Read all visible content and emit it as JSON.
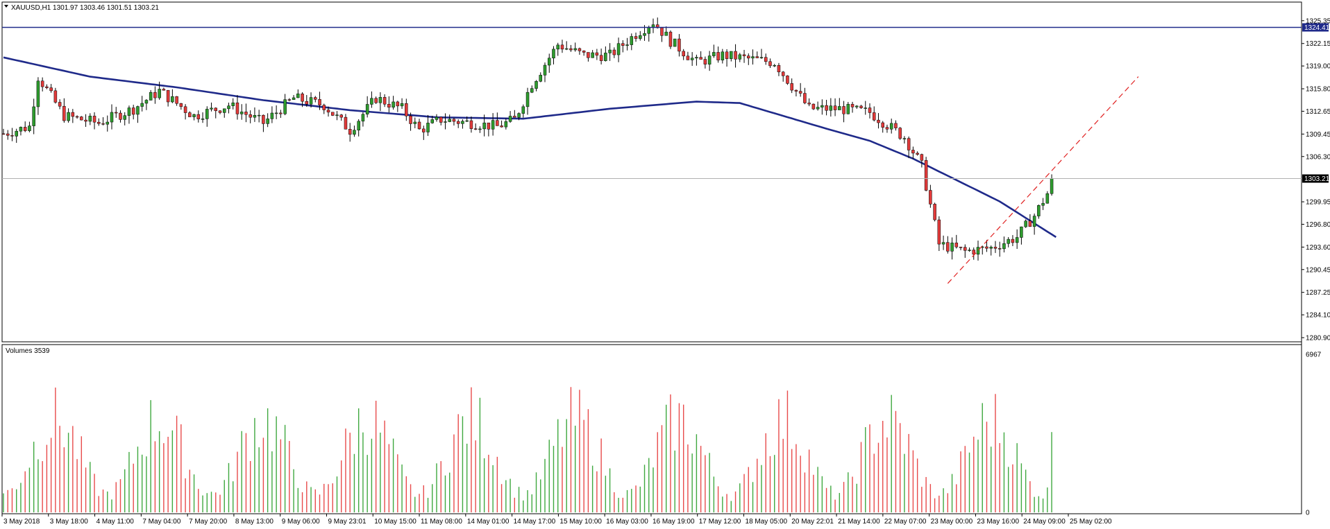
{
  "header": {
    "symbol_line": "XAUUSD,H1  1301.97 1303.46 1301.51 1303.21",
    "volume_label": "Volumes 3539"
  },
  "colors": {
    "background": "#ffffff",
    "bull": "#2e9c2e",
    "bear": "#e23a3a",
    "candle_wick": "#000000",
    "moving_average": "#1f2a8a",
    "resistance_line": "#1f2a8a",
    "current_price_line": "#b0b0b0",
    "trend_line": "#e02020",
    "volume_up": "#3fa83f",
    "volume_down": "#e84a4a"
  },
  "chart_data": [
    {
      "type": "candlestick",
      "name": "XAUUSD,H1",
      "ylim": [
        1280.9,
        1326.5
      ],
      "y_ticks": [
        1325.35,
        1322.15,
        1319.0,
        1315.8,
        1312.65,
        1309.45,
        1306.3,
        1303.21,
        1299.95,
        1296.8,
        1293.6,
        1290.45,
        1287.25,
        1284.1,
        1280.9
      ],
      "price_labels": {
        "resistance": "1324.41",
        "current": "1303.21"
      },
      "resistance_level": 1324.41,
      "current_price": 1303.21,
      "x_labels": [
        "3 May 2018",
        "3 May 18:00",
        "4 May 11:00",
        "7 May 04:00",
        "7 May 20:00",
        "8 May 13:00",
        "9 May 06:00",
        "9 May 23:01",
        "10 May 15:00",
        "11 May 08:00",
        "14 May 01:00",
        "14 May 17:00",
        "15 May 10:00",
        "16 May 03:00",
        "16 May 19:00",
        "17 May 12:00",
        "18 May 05:00",
        "20 May 22:01",
        "21 May 14:00",
        "22 May 07:00",
        "23 May 00:00",
        "23 May 16:00",
        "24 May 09:00",
        "25 May 02:00"
      ],
      "bar_count": 243,
      "close_anchors": [
        [
          0,
          1309.5
        ],
        [
          6,
          1310.5
        ],
        [
          8,
          1317.5
        ],
        [
          14,
          1312.0
        ],
        [
          22,
          1311.0
        ],
        [
          30,
          1313.0
        ],
        [
          36,
          1315.5
        ],
        [
          44,
          1312.0
        ],
        [
          52,
          1313.5
        ],
        [
          60,
          1311.0
        ],
        [
          67,
          1314.5
        ],
        [
          74,
          1313.5
        ],
        [
          80,
          1310.0
        ],
        [
          86,
          1314.5
        ],
        [
          92,
          1313.0
        ],
        [
          96,
          1310.0
        ],
        [
          101,
          1311.5
        ],
        [
          108,
          1311.0
        ],
        [
          114,
          1310.5
        ],
        [
          118,
          1311.5
        ],
        [
          122,
          1316.5
        ],
        [
          128,
          1322.0
        ],
        [
          134,
          1320.5
        ],
        [
          140,
          1320.5
        ],
        [
          146,
          1323.5
        ],
        [
          150,
          1325.2
        ],
        [
          154,
          1322.5
        ],
        [
          160,
          1319.5
        ],
        [
          166,
          1320.5
        ],
        [
          172,
          1320.0
        ],
        [
          178,
          1319.5
        ],
        [
          186,
          1313.0
        ],
        [
          193,
          1313.0
        ],
        [
          200,
          1312.5
        ],
        [
          208,
          1309.0
        ],
        [
          212,
          1305.0
        ],
        [
          216,
          1294.0
        ],
        [
          222,
          1293.0
        ],
        [
          228,
          1293.5
        ],
        [
          234,
          1295.0
        ],
        [
          238,
          1298.0
        ],
        [
          243,
          1303.2
        ]
      ],
      "moving_average_anchors": [
        [
          0,
          1320.2
        ],
        [
          20,
          1317.5
        ],
        [
          40,
          1316.0
        ],
        [
          60,
          1314.2
        ],
        [
          80,
          1312.8
        ],
        [
          100,
          1311.8
        ],
        [
          120,
          1311.6
        ],
        [
          140,
          1313.0
        ],
        [
          160,
          1314.0
        ],
        [
          170,
          1313.8
        ],
        [
          180,
          1312.0
        ],
        [
          190,
          1310.2
        ],
        [
          200,
          1308.5
        ],
        [
          210,
          1306.0
        ],
        [
          220,
          1303.0
        ],
        [
          230,
          1300.0
        ],
        [
          243,
          1295.0
        ]
      ],
      "trend_line": {
        "from": [
          218,
          1288.5
        ],
        "to": [
          262,
          1317.5
        ]
      }
    },
    {
      "type": "bar",
      "name": "Volumes",
      "ylim": [
        0,
        6967
      ],
      "y_ticks": [
        0,
        6967
      ],
      "y_tick_labels": [
        "0",
        "6967"
      ],
      "last_value": 3539
    }
  ]
}
